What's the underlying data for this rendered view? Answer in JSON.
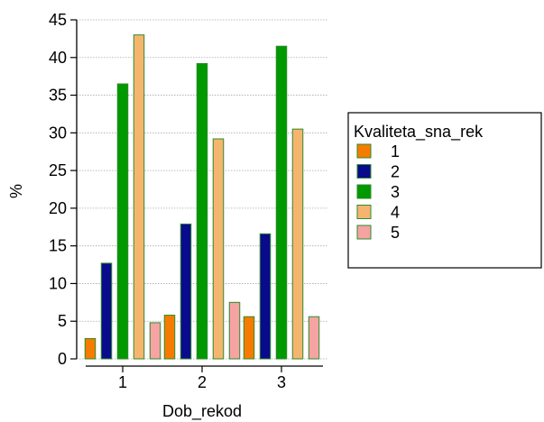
{
  "chart_data": {
    "type": "bar",
    "xlabel": "Dob_rekod",
    "ylabel": "%",
    "ylim": [
      0,
      45
    ],
    "y_ticks": [
      "0",
      "5",
      "10",
      "15",
      "20",
      "25",
      "30",
      "35",
      "40",
      "45"
    ],
    "categories": [
      "1",
      "2",
      "3"
    ],
    "grid": true,
    "legend_position": "right",
    "legend_title": "Kvaliteta_sna_rek",
    "series": [
      {
        "name": "1",
        "color": "#f57c00",
        "values": [
          2.7,
          5.8,
          5.6
        ]
      },
      {
        "name": "2",
        "color": "#0a0a8c",
        "values": [
          12.7,
          17.9,
          16.6
        ]
      },
      {
        "name": "3",
        "color": "#009900",
        "values": [
          36.5,
          39.2,
          41.5
        ]
      },
      {
        "name": "4",
        "color": "#f5b56e",
        "values": [
          43.0,
          29.2,
          30.5
        ]
      },
      {
        "name": "5",
        "color": "#f5a3a3",
        "values": [
          4.8,
          7.5,
          5.6
        ]
      }
    ],
    "bar_outline_color": "#2e8b2e"
  }
}
